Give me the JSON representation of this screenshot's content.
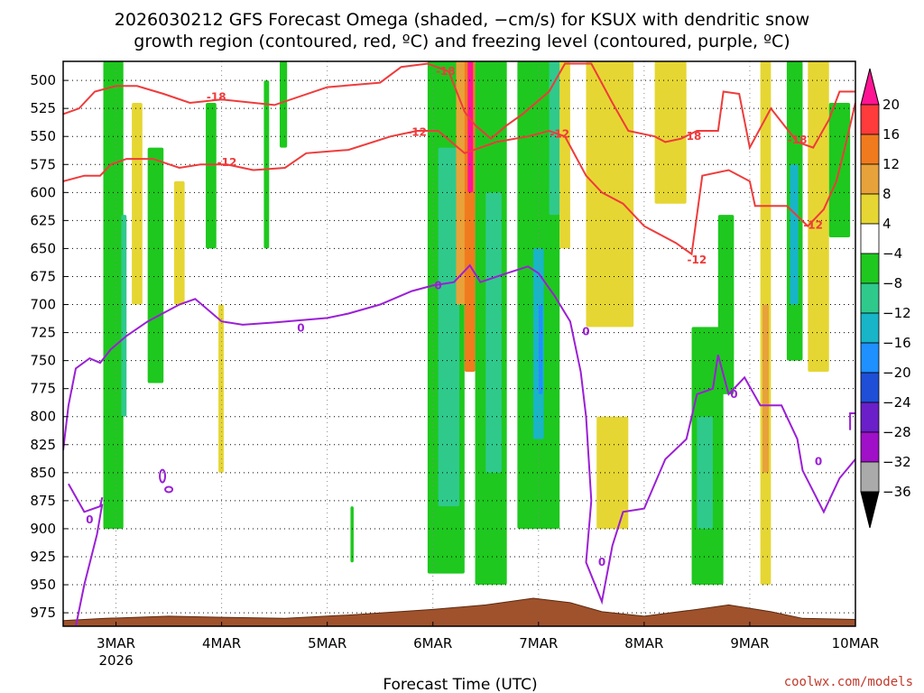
{
  "chart_data": {
    "type": "heatmap",
    "title_line1": "2026030212 GFS Forecast Omega (shaded, −cm/s) for KSUX with dendritic snow",
    "title_line2": "growth region (contoured, red, ºC) and freezing level (contoured, purple, ºC)",
    "xlabel": "Forecast Time (UTC)",
    "credit": "coolwx.com/models",
    "x_range_days": [
      2.5,
      10.0
    ],
    "x_ticks": [
      {
        "x": 3,
        "label": "3MAR",
        "sub": "2026"
      },
      {
        "x": 4,
        "label": "4MAR",
        "sub": ""
      },
      {
        "x": 5,
        "label": "5MAR",
        "sub": ""
      },
      {
        "x": 6,
        "label": "6MAR",
        "sub": ""
      },
      {
        "x": 7,
        "label": "7MAR",
        "sub": ""
      },
      {
        "x": 8,
        "label": "8MAR",
        "sub": ""
      },
      {
        "x": 9,
        "label": "9MAR",
        "sub": ""
      },
      {
        "x": 10,
        "label": "10MAR",
        "sub": ""
      }
    ],
    "y_range_hpa": [
      483,
      987
    ],
    "y_ticks": [
      500,
      525,
      550,
      575,
      600,
      625,
      650,
      675,
      700,
      725,
      750,
      775,
      800,
      825,
      850,
      875,
      900,
      925,
      950,
      975
    ],
    "grid": true,
    "colorbar": {
      "levels": [
        20,
        16,
        12,
        8,
        4,
        -4,
        -8,
        -12,
        -16,
        -20,
        -24,
        -28,
        -32,
        -36
      ],
      "colors": [
        "#ff1493",
        "#ff3b3b",
        "#f07b1e",
        "#e8a23a",
        "#e6d633",
        "#ffffff",
        "#1ec81e",
        "#2fc98c",
        "#17b5c7",
        "#1e90ff",
        "#1e4fd6",
        "#6a1fc9",
        "#a010c8",
        "#aaaaaa",
        "#000000"
      ]
    },
    "omega_regions": [
      {
        "x": [
          2.88,
          3.07
        ],
        "p": [
          483,
          900
        ],
        "v": -6
      },
      {
        "x": [
          3.05,
          3.1
        ],
        "p": [
          620,
          800
        ],
        "v": -11
      },
      {
        "x": [
          3.15,
          3.25
        ],
        "p": [
          520,
          700
        ],
        "v": 5
      },
      {
        "x": [
          3.3,
          3.45
        ],
        "p": [
          560,
          770
        ],
        "v": -6
      },
      {
        "x": [
          3.55,
          3.65
        ],
        "p": [
          590,
          700
        ],
        "v": 5
      },
      {
        "x": [
          3.85,
          3.95
        ],
        "p": [
          520,
          650
        ],
        "v": -6
      },
      {
        "x": [
          4.4,
          4.45
        ],
        "p": [
          500,
          650
        ],
        "v": -6
      },
      {
        "x": [
          4.55,
          4.62
        ],
        "p": [
          483,
          560
        ],
        "v": -6
      },
      {
        "x": [
          3.97,
          4.02
        ],
        "p": [
          700,
          850
        ],
        "v": 5
      },
      {
        "x": [
          5.22,
          5.25
        ],
        "p": [
          880,
          930
        ],
        "v": -6
      },
      {
        "x": [
          5.95,
          6.3
        ],
        "p": [
          483,
          940
        ],
        "v": -6
      },
      {
        "x": [
          6.05,
          6.25
        ],
        "p": [
          560,
          880
        ],
        "v": -9
      },
      {
        "x": [
          6.22,
          6.34
        ],
        "p": [
          483,
          700
        ],
        "v": 9
      },
      {
        "x": [
          6.3,
          6.4
        ],
        "p": [
          483,
          760
        ],
        "v": 14
      },
      {
        "x": [
          6.33,
          6.38
        ],
        "p": [
          483,
          600
        ],
        "v": 20
      },
      {
        "x": [
          6.4,
          6.7
        ],
        "p": [
          483,
          950
        ],
        "v": -6
      },
      {
        "x": [
          6.5,
          6.65
        ],
        "p": [
          600,
          850
        ],
        "v": -11
      },
      {
        "x": [
          6.8,
          7.2
        ],
        "p": [
          483,
          900
        ],
        "v": -7
      },
      {
        "x": [
          6.95,
          7.05
        ],
        "p": [
          650,
          820
        ],
        "v": -14
      },
      {
        "x": [
          7.0,
          7.04
        ],
        "p": [
          700,
          780
        ],
        "v": -18
      },
      {
        "x": [
          7.1,
          7.2
        ],
        "p": [
          483,
          620
        ],
        "v": -11
      },
      {
        "x": [
          7.2,
          7.3
        ],
        "p": [
          483,
          650
        ],
        "v": 5
      },
      {
        "x": [
          7.45,
          7.9
        ],
        "p": [
          483,
          720
        ],
        "v": 5
      },
      {
        "x": [
          7.55,
          7.85
        ],
        "p": [
          800,
          900
        ],
        "v": 5
      },
      {
        "x": [
          8.1,
          8.4
        ],
        "p": [
          483,
          610
        ],
        "v": 5
      },
      {
        "x": [
          8.45,
          8.75
        ],
        "p": [
          720,
          950
        ],
        "v": -7
      },
      {
        "x": [
          8.5,
          8.65
        ],
        "p": [
          800,
          900
        ],
        "v": -10
      },
      {
        "x": [
          8.7,
          8.85
        ],
        "p": [
          620,
          780
        ],
        "v": -6
      },
      {
        "x": [
          9.1,
          9.2
        ],
        "p": [
          483,
          950
        ],
        "v": 5
      },
      {
        "x": [
          9.12,
          9.18
        ],
        "p": [
          700,
          850
        ],
        "v": 10
      },
      {
        "x": [
          9.35,
          9.5
        ],
        "p": [
          483,
          750
        ],
        "v": -7
      },
      {
        "x": [
          9.38,
          9.46
        ],
        "p": [
          575,
          700
        ],
        "v": -13
      },
      {
        "x": [
          9.55,
          9.75
        ],
        "p": [
          483,
          760
        ],
        "v": 5
      },
      {
        "x": [
          9.75,
          9.95
        ],
        "p": [
          520,
          640
        ],
        "v": -6
      }
    ],
    "surface_hpa": [
      {
        "x": 2.5,
        "p": 982
      },
      {
        "x": 2.9,
        "p": 980
      },
      {
        "x": 3.5,
        "p": 978
      },
      {
        "x": 4.0,
        "p": 979
      },
      {
        "x": 4.6,
        "p": 980
      },
      {
        "x": 5.2,
        "p": 977
      },
      {
        "x": 6.0,
        "p": 972
      },
      {
        "x": 6.5,
        "p": 968
      },
      {
        "x": 6.95,
        "p": 962
      },
      {
        "x": 7.3,
        "p": 966
      },
      {
        "x": 7.6,
        "p": 974
      },
      {
        "x": 8.0,
        "p": 978
      },
      {
        "x": 8.5,
        "p": 972
      },
      {
        "x": 8.8,
        "p": 968
      },
      {
        "x": 9.2,
        "p": 974
      },
      {
        "x": 9.5,
        "p": 980
      },
      {
        "x": 10.0,
        "p": 981
      }
    ],
    "dgz_upper_minus18": [
      {
        "x": 2.5,
        "p": 530
      },
      {
        "x": 2.65,
        "p": 525
      },
      {
        "x": 2.8,
        "p": 510
      },
      {
        "x": 3.0,
        "p": 505
      },
      {
        "x": 3.2,
        "p": 505
      },
      {
        "x": 3.45,
        "p": 512
      },
      {
        "x": 3.7,
        "p": 520
      },
      {
        "x": 4.0,
        "p": 517
      },
      {
        "x": 4.5,
        "p": 522
      },
      {
        "x": 5.0,
        "p": 506
      },
      {
        "x": 5.5,
        "p": 502
      },
      {
        "x": 5.7,
        "p": 488
      },
      {
        "x": 5.95,
        "p": 485
      },
      {
        "x": 6.15,
        "p": 492
      },
      {
        "x": 6.3,
        "p": 528
      },
      {
        "x": 6.4,
        "p": 540
      },
      {
        "x": 6.55,
        "p": 552
      },
      {
        "x": 6.7,
        "p": 540
      },
      {
        "x": 6.85,
        "p": 530
      },
      {
        "x": 7.1,
        "p": 510
      },
      {
        "x": 7.25,
        "p": 485
      },
      {
        "x": 7.5,
        "p": 485
      },
      {
        "x": 7.7,
        "p": 520
      },
      {
        "x": 7.85,
        "p": 545
      },
      {
        "x": 8.1,
        "p": 550
      },
      {
        "x": 8.2,
        "p": 555
      },
      {
        "x": 8.35,
        "p": 552
      },
      {
        "x": 8.5,
        "p": 545
      },
      {
        "x": 8.7,
        "p": 545
      },
      {
        "x": 8.75,
        "p": 510
      },
      {
        "x": 8.9,
        "p": 512
      },
      {
        "x": 9.0,
        "p": 560
      },
      {
        "x": 9.2,
        "p": 525
      },
      {
        "x": 9.45,
        "p": 555
      },
      {
        "x": 9.6,
        "p": 560
      },
      {
        "x": 9.75,
        "p": 535
      },
      {
        "x": 9.85,
        "p": 510
      },
      {
        "x": 10.0,
        "p": 510
      }
    ],
    "dgz_lower_minus12": [
      {
        "x": 2.5,
        "p": 590
      },
      {
        "x": 2.7,
        "p": 585
      },
      {
        "x": 2.85,
        "p": 585
      },
      {
        "x": 2.95,
        "p": 575
      },
      {
        "x": 3.1,
        "p": 570
      },
      {
        "x": 3.35,
        "p": 570
      },
      {
        "x": 3.6,
        "p": 578
      },
      {
        "x": 3.8,
        "p": 575
      },
      {
        "x": 4.05,
        "p": 575
      },
      {
        "x": 4.3,
        "p": 580
      },
      {
        "x": 4.6,
        "p": 578
      },
      {
        "x": 4.8,
        "p": 565
      },
      {
        "x": 5.2,
        "p": 562
      },
      {
        "x": 5.6,
        "p": 550
      },
      {
        "x": 5.85,
        "p": 545
      },
      {
        "x": 6.05,
        "p": 545
      },
      {
        "x": 6.3,
        "p": 565
      },
      {
        "x": 6.6,
        "p": 555
      },
      {
        "x": 6.9,
        "p": 550
      },
      {
        "x": 7.1,
        "p": 545
      },
      {
        "x": 7.25,
        "p": 550
      },
      {
        "x": 7.45,
        "p": 585
      },
      {
        "x": 7.6,
        "p": 600
      },
      {
        "x": 7.8,
        "p": 610
      },
      {
        "x": 8.0,
        "p": 630
      },
      {
        "x": 8.3,
        "p": 645
      },
      {
        "x": 8.45,
        "p": 655
      },
      {
        "x": 8.55,
        "p": 585
      },
      {
        "x": 8.8,
        "p": 580
      },
      {
        "x": 9.0,
        "p": 590
      },
      {
        "x": 9.05,
        "p": 612
      },
      {
        "x": 9.35,
        "p": 612
      },
      {
        "x": 9.55,
        "p": 630
      },
      {
        "x": 9.7,
        "p": 615
      },
      {
        "x": 9.82,
        "p": 590
      },
      {
        "x": 9.9,
        "p": 560
      },
      {
        "x": 10.0,
        "p": 520
      }
    ],
    "freezing_level_0": [
      {
        "x": 2.5,
        "p": 830
      },
      {
        "x": 2.55,
        "p": 790
      },
      {
        "x": 2.62,
        "p": 757
      },
      {
        "x": 2.75,
        "p": 748
      },
      {
        "x": 2.85,
        "p": 752
      },
      {
        "x": 2.95,
        "p": 740
      },
      {
        "x": 3.1,
        "p": 728
      },
      {
        "x": 3.3,
        "p": 715
      },
      {
        "x": 3.6,
        "p": 700
      },
      {
        "x": 3.75,
        "p": 695
      },
      {
        "x": 4.0,
        "p": 715
      },
      {
        "x": 4.2,
        "p": 718
      },
      {
        "x": 4.5,
        "p": 716
      },
      {
        "x": 5.0,
        "p": 712
      },
      {
        "x": 5.2,
        "p": 708
      },
      {
        "x": 5.5,
        "p": 700
      },
      {
        "x": 5.8,
        "p": 688
      },
      {
        "x": 6.0,
        "p": 683
      },
      {
        "x": 6.2,
        "p": 680
      },
      {
        "x": 6.35,
        "p": 665
      },
      {
        "x": 6.45,
        "p": 680
      },
      {
        "x": 6.7,
        "p": 672
      },
      {
        "x": 6.9,
        "p": 666
      },
      {
        "x": 7.0,
        "p": 672
      },
      {
        "x": 7.15,
        "p": 692
      },
      {
        "x": 7.3,
        "p": 715
      },
      {
        "x": 7.4,
        "p": 760
      },
      {
        "x": 7.45,
        "p": 800
      },
      {
        "x": 7.5,
        "p": 875
      },
      {
        "x": 7.45,
        "p": 930
      },
      {
        "x": 7.6,
        "p": 965
      },
      {
        "x": 7.7,
        "p": 915
      },
      {
        "x": 7.8,
        "p": 885
      },
      {
        "x": 8.0,
        "p": 882
      },
      {
        "x": 8.2,
        "p": 838
      },
      {
        "x": 8.4,
        "p": 820
      },
      {
        "x": 8.5,
        "p": 780
      },
      {
        "x": 8.65,
        "p": 775
      },
      {
        "x": 8.7,
        "p": 745
      },
      {
        "x": 8.8,
        "p": 780
      },
      {
        "x": 8.95,
        "p": 765
      },
      {
        "x": 9.1,
        "p": 790
      },
      {
        "x": 9.3,
        "p": 790
      },
      {
        "x": 9.45,
        "p": 820
      },
      {
        "x": 9.5,
        "p": 848
      },
      {
        "x": 9.7,
        "p": 885
      },
      {
        "x": 9.85,
        "p": 855
      },
      {
        "x": 10.0,
        "p": 838
      }
    ],
    "contour_labels": [
      {
        "x": 3.95,
        "p": 515,
        "text": "-18",
        "color": "#ef3b3b"
      },
      {
        "x": 6.12,
        "p": 492,
        "text": "-18",
        "color": "#ef3b3b"
      },
      {
        "x": 8.45,
        "p": 550,
        "text": "-18",
        "color": "#ef3b3b"
      },
      {
        "x": 9.45,
        "p": 553,
        "text": "-18",
        "color": "#ef3b3b"
      },
      {
        "x": 4.05,
        "p": 573,
        "text": "-12",
        "color": "#ef3b3b"
      },
      {
        "x": 5.85,
        "p": 546,
        "text": "-12",
        "color": "#ef3b3b"
      },
      {
        "x": 7.2,
        "p": 548,
        "text": "-12",
        "color": "#ef3b3b"
      },
      {
        "x": 8.5,
        "p": 660,
        "text": "-12",
        "color": "#ef3b3b"
      },
      {
        "x": 9.6,
        "p": 629,
        "text": "-12",
        "color": "#ef3b3b"
      },
      {
        "x": 4.75,
        "p": 721,
        "text": "0",
        "color": "#9b1fd6"
      },
      {
        "x": 6.05,
        "p": 683,
        "text": "0",
        "color": "#9b1fd6"
      },
      {
        "x": 7.45,
        "p": 724,
        "text": "0",
        "color": "#9b1fd6"
      },
      {
        "x": 8.85,
        "p": 780,
        "text": "0",
        "color": "#9b1fd6"
      },
      {
        "x": 9.65,
        "p": 840,
        "text": "0",
        "color": "#9b1fd6"
      },
      {
        "x": 2.75,
        "p": 892,
        "text": "0",
        "color": "#9b1fd6"
      },
      {
        "x": 7.6,
        "p": 930,
        "text": "0",
        "color": "#9b1fd6"
      }
    ]
  }
}
